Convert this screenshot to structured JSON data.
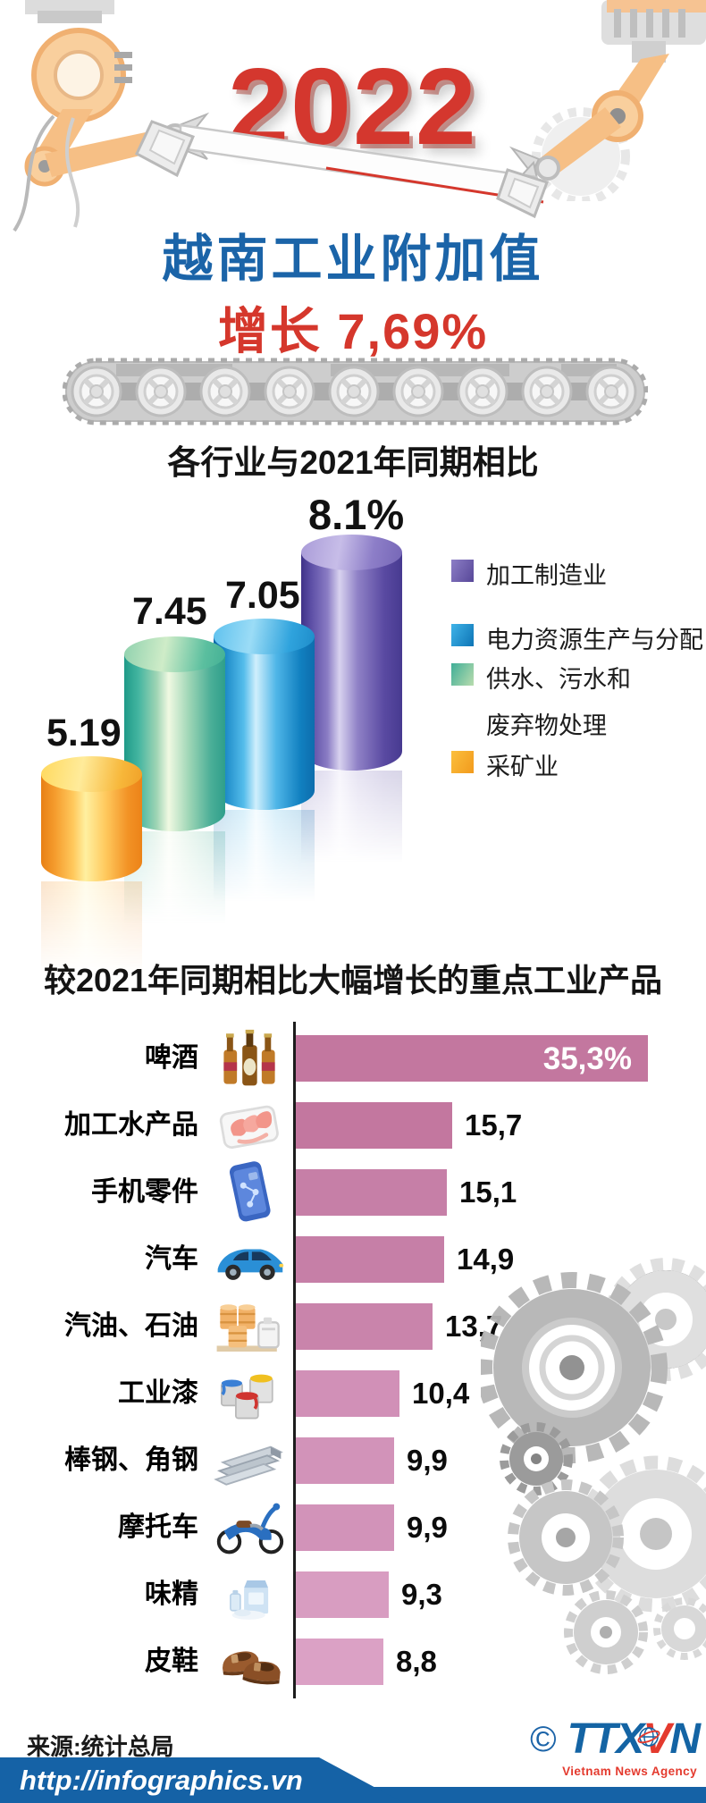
{
  "header": {
    "year": "2022",
    "title": "越南工业附加值",
    "growth_label": "增长 7,69%"
  },
  "cylinder_chart": {
    "title": "各行业与2021年同期相比",
    "bars": [
      {
        "sector": "采矿业",
        "value": 5.19,
        "value_label": "5.19",
        "color": "#f5a623"
      },
      {
        "sector": "供水、污水和废弃物处理",
        "value": 7.45,
        "value_label": "7.45",
        "color": "#43b5a0"
      },
      {
        "sector": "电力资源生产与分配",
        "value": 7.05,
        "value_label": "7.05",
        "color": "#1e8cc9"
      },
      {
        "sector": "加工制造业",
        "value": 8.1,
        "value_label": "8.1%",
        "color": "#5d4fa6"
      }
    ],
    "legend": [
      {
        "label": "加工制造业",
        "color": "#6f5fb0"
      },
      {
        "label": "电力资源生产与分配",
        "color": "#1e8cc9"
      },
      {
        "label": "供水、污水和",
        "label2": "废弃物处理",
        "color": "#6fc3a4"
      },
      {
        "label": "采矿业",
        "color": "#f6a929"
      }
    ]
  },
  "bar_chart": {
    "title": "较2021年同期相比大幅增长的重点工业产品",
    "unit": "%",
    "rows": [
      {
        "label": "啤酒",
        "value": 35.3,
        "value_label": "35,3%",
        "icon": "beer-bottles"
      },
      {
        "label": "加工水产品",
        "value": 15.7,
        "value_label": "15,7",
        "icon": "seafood-tray"
      },
      {
        "label": "手机零件",
        "value": 15.1,
        "value_label": "15,1",
        "icon": "smartphone"
      },
      {
        "label": "汽车",
        "value": 14.9,
        "value_label": "14,9",
        "icon": "car"
      },
      {
        "label": "汽油、石油",
        "value": 13.7,
        "value_label": "13,7",
        "icon": "oil-barrels"
      },
      {
        "label": "工业漆",
        "value": 10.4,
        "value_label": "10,4",
        "icon": "paint-buckets"
      },
      {
        "label": "棒钢、角钢",
        "value": 9.9,
        "value_label": "9,9",
        "icon": "steel-beams"
      },
      {
        "label": "摩托车",
        "value": 9.9,
        "value_label": "9,9",
        "icon": "motorbike"
      },
      {
        "label": "味精",
        "value": 9.3,
        "value_label": "9,3",
        "icon": "msg-carton"
      },
      {
        "label": "皮鞋",
        "value": 8.8,
        "value_label": "8,8",
        "icon": "leather-shoes"
      }
    ]
  },
  "footer": {
    "source": "来源:统计总局",
    "url": "http://infographics.vn",
    "copyright": "©",
    "logo_part1": "TTX",
    "logo_part2": "V",
    "logo_part3": "N",
    "logo_sub": "Vietnam News Agency"
  },
  "colors": {
    "headline_red": "#d5372c",
    "headline_blue": "#1b64a8",
    "bar_pink_dark": "#c3779f",
    "bar_pink_light": "#dba1c5",
    "footer_blue": "#1562a6",
    "logo_red": "#e43a2e"
  },
  "chart_data": [
    {
      "type": "bar",
      "subtype": "3d-cylinder-columns",
      "title": "各行业与2021年同期相比",
      "categories": [
        "采矿业",
        "供水、污水和废弃物处理",
        "电力资源生产与分配",
        "加工制造业"
      ],
      "values": [
        5.19,
        7.45,
        7.05,
        8.1
      ],
      "data_labels": [
        "5.19",
        "7.45",
        "7.05",
        "8.1%"
      ],
      "unit": "%",
      "xlabel": "",
      "ylabel": "",
      "ylim": [
        0,
        9
      ],
      "grid": false,
      "legend_position": "right",
      "series_colors": [
        "#f5a623",
        "#43b5a0",
        "#1e8cc9",
        "#5d4fa6"
      ]
    },
    {
      "type": "bar",
      "orientation": "horizontal",
      "title": "较2021年同期相比大幅增长的重点工业产品",
      "categories": [
        "啤酒",
        "加工水产品",
        "手机零件",
        "汽车",
        "汽油、石油",
        "工业漆",
        "棒钢、角钢",
        "摩托车",
        "味精",
        "皮鞋"
      ],
      "values": [
        35.3,
        15.7,
        15.1,
        14.9,
        13.7,
        10.4,
        9.9,
        9.9,
        9.3,
        8.8
      ],
      "data_labels": [
        "35,3%",
        "15,7",
        "15,1",
        "14,9",
        "13,7",
        "10,4",
        "9,9",
        "9,9",
        "9,3",
        "8,8"
      ],
      "unit": "%",
      "xlim": [
        0,
        36
      ],
      "grid": false,
      "bar_color": "#c77fa8"
    }
  ]
}
